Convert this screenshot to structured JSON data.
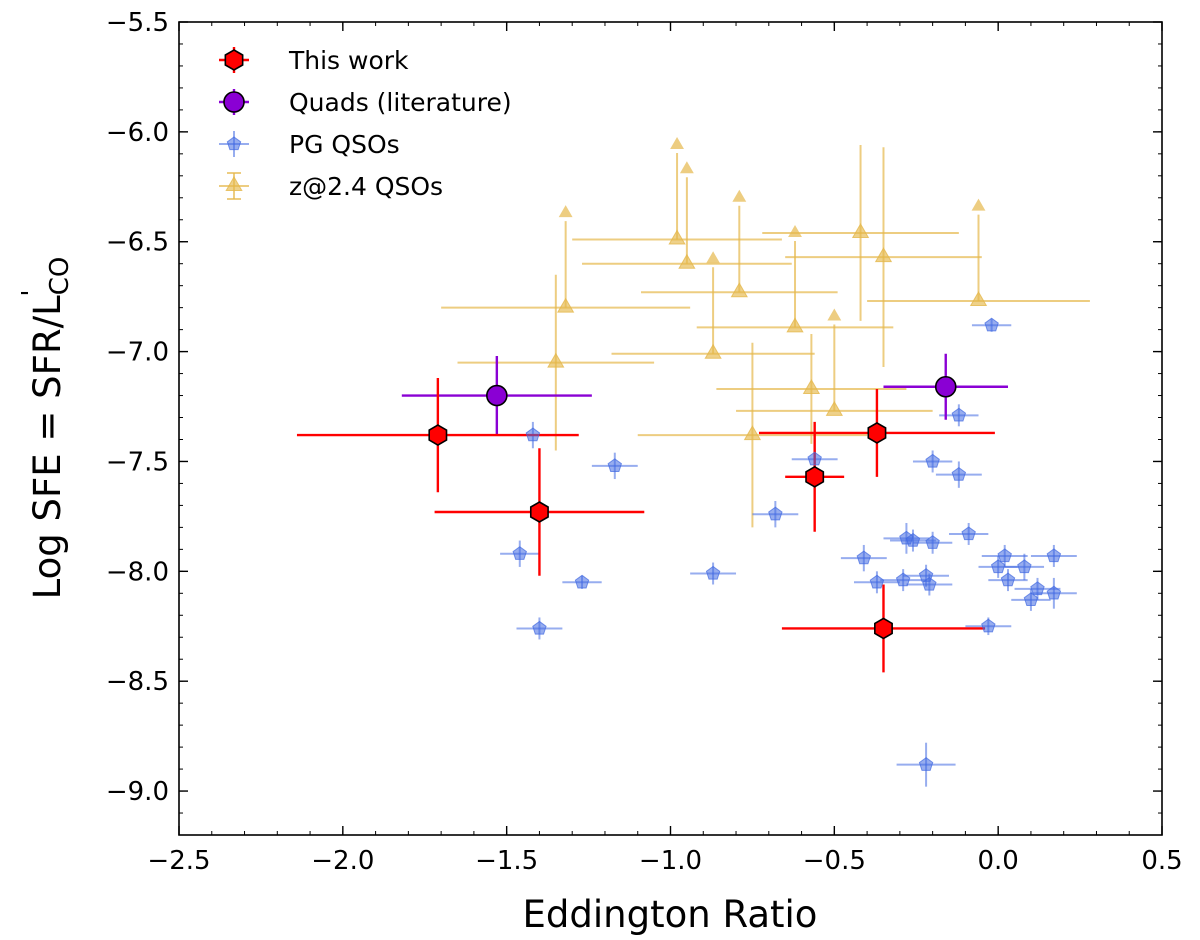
{
  "chart_data": {
    "type": "scatter",
    "xlabel": "Eddington Ratio",
    "ylabel_parts": {
      "main": "Log SFE = SFR/L",
      "sub": "CO",
      "sup": "'"
    },
    "xlim": [
      -2.5,
      0.5
    ],
    "ylim": [
      -9.2,
      -5.5
    ],
    "xticks": [
      -2.5,
      -2.0,
      -1.5,
      -1.0,
      -0.5,
      0.0,
      0.5
    ],
    "xtick_labels": [
      "−2.5",
      "−2.0",
      "−1.5",
      "−1.0",
      "−0.5",
      "0.0",
      "0.5"
    ],
    "yticks": [
      -9.0,
      -8.5,
      -8.0,
      -7.5,
      -7.0,
      -6.5,
      -6.0,
      -5.5
    ],
    "ytick_labels": [
      "−9.0",
      "−8.5",
      "−8.0",
      "−7.5",
      "−7.0",
      "−6.5",
      "−6.0",
      "−5.5"
    ],
    "legend_position": "top-left",
    "series": [
      {
        "name": "This work",
        "marker": "hexagon",
        "color": "#ff0000",
        "points": [
          {
            "x": -1.71,
            "y": -7.38,
            "xl": 0.43,
            "xh": 0.43,
            "yl": 0.26,
            "yh": 0.26
          },
          {
            "x": -1.4,
            "y": -7.73,
            "xl": 0.32,
            "xh": 0.32,
            "yl": 0.29,
            "yh": 0.29
          },
          {
            "x": -0.56,
            "y": -7.57,
            "xl": 0.09,
            "xh": 0.09,
            "yl": 0.25,
            "yh": 0.25
          },
          {
            "x": -0.37,
            "y": -7.37,
            "xl": 0.36,
            "xh": 0.36,
            "yl": 0.2,
            "yh": 0.2
          },
          {
            "x": -0.35,
            "y": -8.26,
            "xl": 0.31,
            "xh": 0.31,
            "yl": 0.2,
            "yh": 0.2
          }
        ]
      },
      {
        "name": "Quads (literature)",
        "marker": "circle",
        "color": "#8a00d4",
        "points": [
          {
            "x": -1.53,
            "y": -7.2,
            "xl": 0.29,
            "xh": 0.29,
            "yl": 0.18,
            "yh": 0.18
          },
          {
            "x": -0.16,
            "y": -7.16,
            "xl": 0.19,
            "xh": 0.19,
            "yl": 0.15,
            "yh": 0.15
          }
        ]
      },
      {
        "name": "PG QSOs",
        "marker": "pentagon",
        "color": "#4169e1",
        "points": [
          {
            "x": -1.42,
            "y": -7.38,
            "xl": 0.05,
            "xh": 0.05,
            "yl": 0.06,
            "yh": 0.06
          },
          {
            "x": -1.46,
            "y": -7.92,
            "xl": 0.06,
            "xh": 0.06,
            "yl": 0.06,
            "yh": 0.06
          },
          {
            "x": -1.27,
            "y": -8.05,
            "xl": 0.06,
            "xh": 0.06,
            "yl": 0.03,
            "yh": 0.03
          },
          {
            "x": -1.4,
            "y": -8.26,
            "xl": 0.07,
            "xh": 0.07,
            "yl": 0.05,
            "yh": 0.05
          },
          {
            "x": -1.17,
            "y": -7.52,
            "xl": 0.07,
            "xh": 0.07,
            "yl": 0.06,
            "yh": 0.06
          },
          {
            "x": -0.87,
            "y": -8.01,
            "xl": 0.07,
            "xh": 0.07,
            "yl": 0.05,
            "yh": 0.05
          },
          {
            "x": -0.68,
            "y": -7.74,
            "xl": 0.07,
            "xh": 0.07,
            "yl": 0.06,
            "yh": 0.06
          },
          {
            "x": -0.56,
            "y": -7.49,
            "xl": 0.07,
            "xh": 0.07,
            "yl": 0.05,
            "yh": 0.05
          },
          {
            "x": -0.41,
            "y": -7.94,
            "xl": 0.07,
            "xh": 0.07,
            "yl": 0.06,
            "yh": 0.06
          },
          {
            "x": -0.37,
            "y": -8.05,
            "xl": 0.07,
            "xh": 0.07,
            "yl": 0.05,
            "yh": 0.05
          },
          {
            "x": -0.29,
            "y": -8.04,
            "xl": 0.07,
            "xh": 0.07,
            "yl": 0.05,
            "yh": 0.05
          },
          {
            "x": -0.28,
            "y": -7.85,
            "xl": 0.07,
            "xh": 0.07,
            "yl": 0.07,
            "yh": 0.07
          },
          {
            "x": -0.26,
            "y": -7.86,
            "xl": 0.07,
            "xh": 0.07,
            "yl": 0.05,
            "yh": 0.05
          },
          {
            "x": -0.2,
            "y": -7.87,
            "xl": 0.06,
            "xh": 0.06,
            "yl": 0.05,
            "yh": 0.05
          },
          {
            "x": -0.22,
            "y": -8.02,
            "xl": 0.07,
            "xh": 0.07,
            "yl": 0.05,
            "yh": 0.05
          },
          {
            "x": -0.21,
            "y": -8.06,
            "xl": 0.07,
            "xh": 0.07,
            "yl": 0.05,
            "yh": 0.05
          },
          {
            "x": -0.2,
            "y": -7.5,
            "xl": 0.06,
            "xh": 0.06,
            "yl": 0.05,
            "yh": 0.05
          },
          {
            "x": -0.12,
            "y": -7.56,
            "xl": 0.07,
            "xh": 0.07,
            "yl": 0.06,
            "yh": 0.06
          },
          {
            "x": -0.12,
            "y": -7.29,
            "xl": 0.06,
            "xh": 0.06,
            "yl": 0.05,
            "yh": 0.05
          },
          {
            "x": -0.09,
            "y": -7.83,
            "xl": 0.06,
            "xh": 0.06,
            "yl": 0.05,
            "yh": 0.05
          },
          {
            "x": -0.03,
            "y": -8.25,
            "xl": 0.07,
            "xh": 0.07,
            "yl": 0.04,
            "yh": 0.04
          },
          {
            "x": 0.0,
            "y": -7.98,
            "xl": 0.06,
            "xh": 0.06,
            "yl": 0.05,
            "yh": 0.05
          },
          {
            "x": 0.02,
            "y": -7.93,
            "xl": 0.07,
            "xh": 0.07,
            "yl": 0.05,
            "yh": 0.05
          },
          {
            "x": 0.03,
            "y": -8.04,
            "xl": 0.06,
            "xh": 0.06,
            "yl": 0.05,
            "yh": 0.05
          },
          {
            "x": 0.08,
            "y": -7.98,
            "xl": 0.06,
            "xh": 0.06,
            "yl": 0.06,
            "yh": 0.06
          },
          {
            "x": 0.1,
            "y": -8.13,
            "xl": 0.06,
            "xh": 0.06,
            "yl": 0.05,
            "yh": 0.05
          },
          {
            "x": 0.12,
            "y": -8.08,
            "xl": 0.07,
            "xh": 0.07,
            "yl": 0.05,
            "yh": 0.05
          },
          {
            "x": 0.17,
            "y": -7.93,
            "xl": 0.07,
            "xh": 0.07,
            "yl": 0.05,
            "yh": 0.05
          },
          {
            "x": 0.17,
            "y": -8.1,
            "xl": 0.07,
            "xh": 0.07,
            "yl": 0.07,
            "yh": 0.07
          },
          {
            "x": -0.02,
            "y": -6.88,
            "xl": 0.06,
            "xh": 0.06,
            "yl": 0.03,
            "yh": 0.03
          },
          {
            "x": -0.22,
            "y": -8.88,
            "xl": 0.09,
            "xh": 0.09,
            "yl": 0.1,
            "yh": 0.1
          }
        ]
      },
      {
        "name": "z@2.4 QSOs",
        "marker": "triangle",
        "color": "#e5b84c",
        "points": [
          {
            "x": -1.32,
            "y": -6.8,
            "xl": 0.38,
            "xh": 0.38,
            "yl": 0,
            "yh": 0,
            "arrow_to": -6.37
          },
          {
            "x": -1.35,
            "y": -7.05,
            "xl": 0.3,
            "xh": 0.3,
            "yl": 0.4,
            "yh": 0.4
          },
          {
            "x": -0.98,
            "y": -6.49,
            "xl": 0.32,
            "xh": 0.32,
            "yl": 0,
            "yh": 0,
            "arrow_to": -6.06
          },
          {
            "x": -0.95,
            "y": -6.6,
            "xl": 0.32,
            "xh": 0.32,
            "yl": 0,
            "yh": 0,
            "arrow_to": -6.17
          },
          {
            "x": -0.87,
            "y": -7.01,
            "xl": 0.31,
            "xh": 0.31,
            "yl": 0,
            "yh": 0,
            "arrow_to": -6.58
          },
          {
            "x": -0.79,
            "y": -6.73,
            "xl": 0.3,
            "xh": 0.3,
            "yl": 0,
            "yh": 0,
            "arrow_to": -6.3
          },
          {
            "x": -0.75,
            "y": -7.38,
            "xl": 0.35,
            "xh": 0.35,
            "yl": 0.42,
            "yh": 0.42
          },
          {
            "x": -0.62,
            "y": -6.89,
            "xl": 0.3,
            "xh": 0.3,
            "yl": 0,
            "yh": 0,
            "arrow_to": -6.46
          },
          {
            "x": -0.57,
            "y": -7.17,
            "xl": 0.29,
            "xh": 0.29,
            "yl": 0.25,
            "yh": 0.25
          },
          {
            "x": -0.5,
            "y": -7.27,
            "xl": 0.3,
            "xh": 0.3,
            "yl": 0,
            "yh": 0,
            "arrow_to": -6.84
          },
          {
            "x": -0.42,
            "y": -6.46,
            "xl": 0.3,
            "xh": 0.3,
            "yl": 0.4,
            "yh": 0.4
          },
          {
            "x": -0.35,
            "y": -6.57,
            "xl": 0.3,
            "xh": 0.3,
            "yl": 0.5,
            "yh": 0.5
          },
          {
            "x": -0.06,
            "y": -6.77,
            "xl": 0.34,
            "xh": 0.34,
            "yl": 0,
            "yh": 0,
            "arrow_to": -6.34
          }
        ]
      }
    ]
  }
}
